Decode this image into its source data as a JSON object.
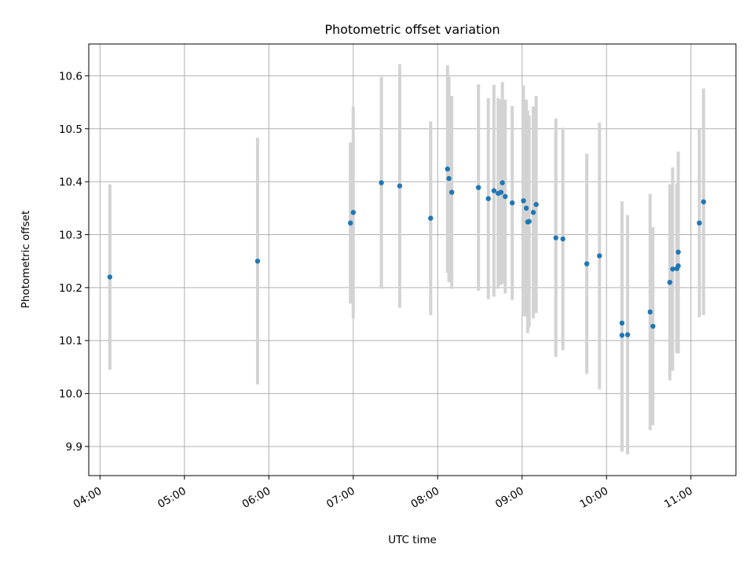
{
  "chart_data": {
    "type": "scatter",
    "title": "Photometric offset variation",
    "xlabel": "UTC time",
    "ylabel": "Photometric offset",
    "grid": true,
    "xlim": [
      "03:52",
      "11:32"
    ],
    "ylim": [
      9.845,
      10.66
    ],
    "x_ticks": [
      "04:00",
      "05:00",
      "06:00",
      "07:00",
      "08:00",
      "09:00",
      "10:00",
      "11:00"
    ],
    "y_ticks": [
      "9.9",
      "10.0",
      "10.1",
      "10.2",
      "10.3",
      "10.4",
      "10.5",
      "10.6"
    ],
    "colors": {
      "point": "#1f77b4",
      "errorbar": "#d3d3d3"
    },
    "series": [
      {
        "points": [
          {
            "x": "04:07",
            "y": 10.22,
            "err": 0.175
          },
          {
            "x": "05:52",
            "y": 10.25,
            "err": 0.233
          },
          {
            "x": "06:58",
            "y": 10.322,
            "err": 0.152
          },
          {
            "x": "07:00",
            "y": 10.342,
            "err": 0.2
          },
          {
            "x": "07:20",
            "y": 10.398,
            "err": 0.2
          },
          {
            "x": "07:33",
            "y": 10.392,
            "err": 0.23
          },
          {
            "x": "07:55",
            "y": 10.331,
            "err": 0.183
          },
          {
            "x": "08:07",
            "y": 10.424,
            "err": 0.196
          },
          {
            "x": "08:08",
            "y": 10.406,
            "err": 0.196
          },
          {
            "x": "08:10",
            "y": 10.38,
            "err": 0.182
          },
          {
            "x": "08:29",
            "y": 10.389,
            "err": 0.195
          },
          {
            "x": "08:36",
            "y": 10.368,
            "err": 0.19
          },
          {
            "x": "08:40",
            "y": 10.383,
            "err": 0.2
          },
          {
            "x": "08:43",
            "y": 10.378,
            "err": 0.18
          },
          {
            "x": "08:45",
            "y": 10.38,
            "err": 0.175
          },
          {
            "x": "08:46",
            "y": 10.398,
            "err": 0.19
          },
          {
            "x": "08:48",
            "y": 10.372,
            "err": 0.183
          },
          {
            "x": "08:53",
            "y": 10.36,
            "err": 0.183
          },
          {
            "x": "09:01",
            "y": 10.364,
            "err": 0.218
          },
          {
            "x": "09:03",
            "y": 10.35,
            "err": 0.205
          },
          {
            "x": "09:04",
            "y": 10.324,
            "err": 0.21
          },
          {
            "x": "09:05",
            "y": 10.325,
            "err": 0.2
          },
          {
            "x": "09:08",
            "y": 10.342,
            "err": 0.2
          },
          {
            "x": "09:10",
            "y": 10.357,
            "err": 0.205
          },
          {
            "x": "09:24",
            "y": 10.294,
            "err": 0.225
          },
          {
            "x": "09:29",
            "y": 10.292,
            "err": 0.21
          },
          {
            "x": "09:46",
            "y": 10.245,
            "err": 0.208
          },
          {
            "x": "09:55",
            "y": 10.26,
            "err": 0.252
          },
          {
            "x": "10:11",
            "y": 10.133,
            "err": 0.23
          },
          {
            "x": "10:11",
            "y": 10.11,
            "err": 0.22
          },
          {
            "x": "10:15",
            "y": 10.111,
            "err": 0.226
          },
          {
            "x": "10:31",
            "y": 10.154,
            "err": 0.223
          },
          {
            "x": "10:33",
            "y": 10.127,
            "err": 0.187
          },
          {
            "x": "10:45",
            "y": 10.21,
            "err": 0.185
          },
          {
            "x": "10:47",
            "y": 10.235,
            "err": 0.192
          },
          {
            "x": "10:50",
            "y": 10.236,
            "err": 0.16
          },
          {
            "x": "10:51",
            "y": 10.241,
            "err": 0.165
          },
          {
            "x": "10:51",
            "y": 10.267,
            "err": 0.19
          },
          {
            "x": "11:06",
            "y": 10.322,
            "err": 0.178
          },
          {
            "x": "11:09",
            "y": 10.362,
            "err": 0.214
          }
        ]
      }
    ]
  }
}
